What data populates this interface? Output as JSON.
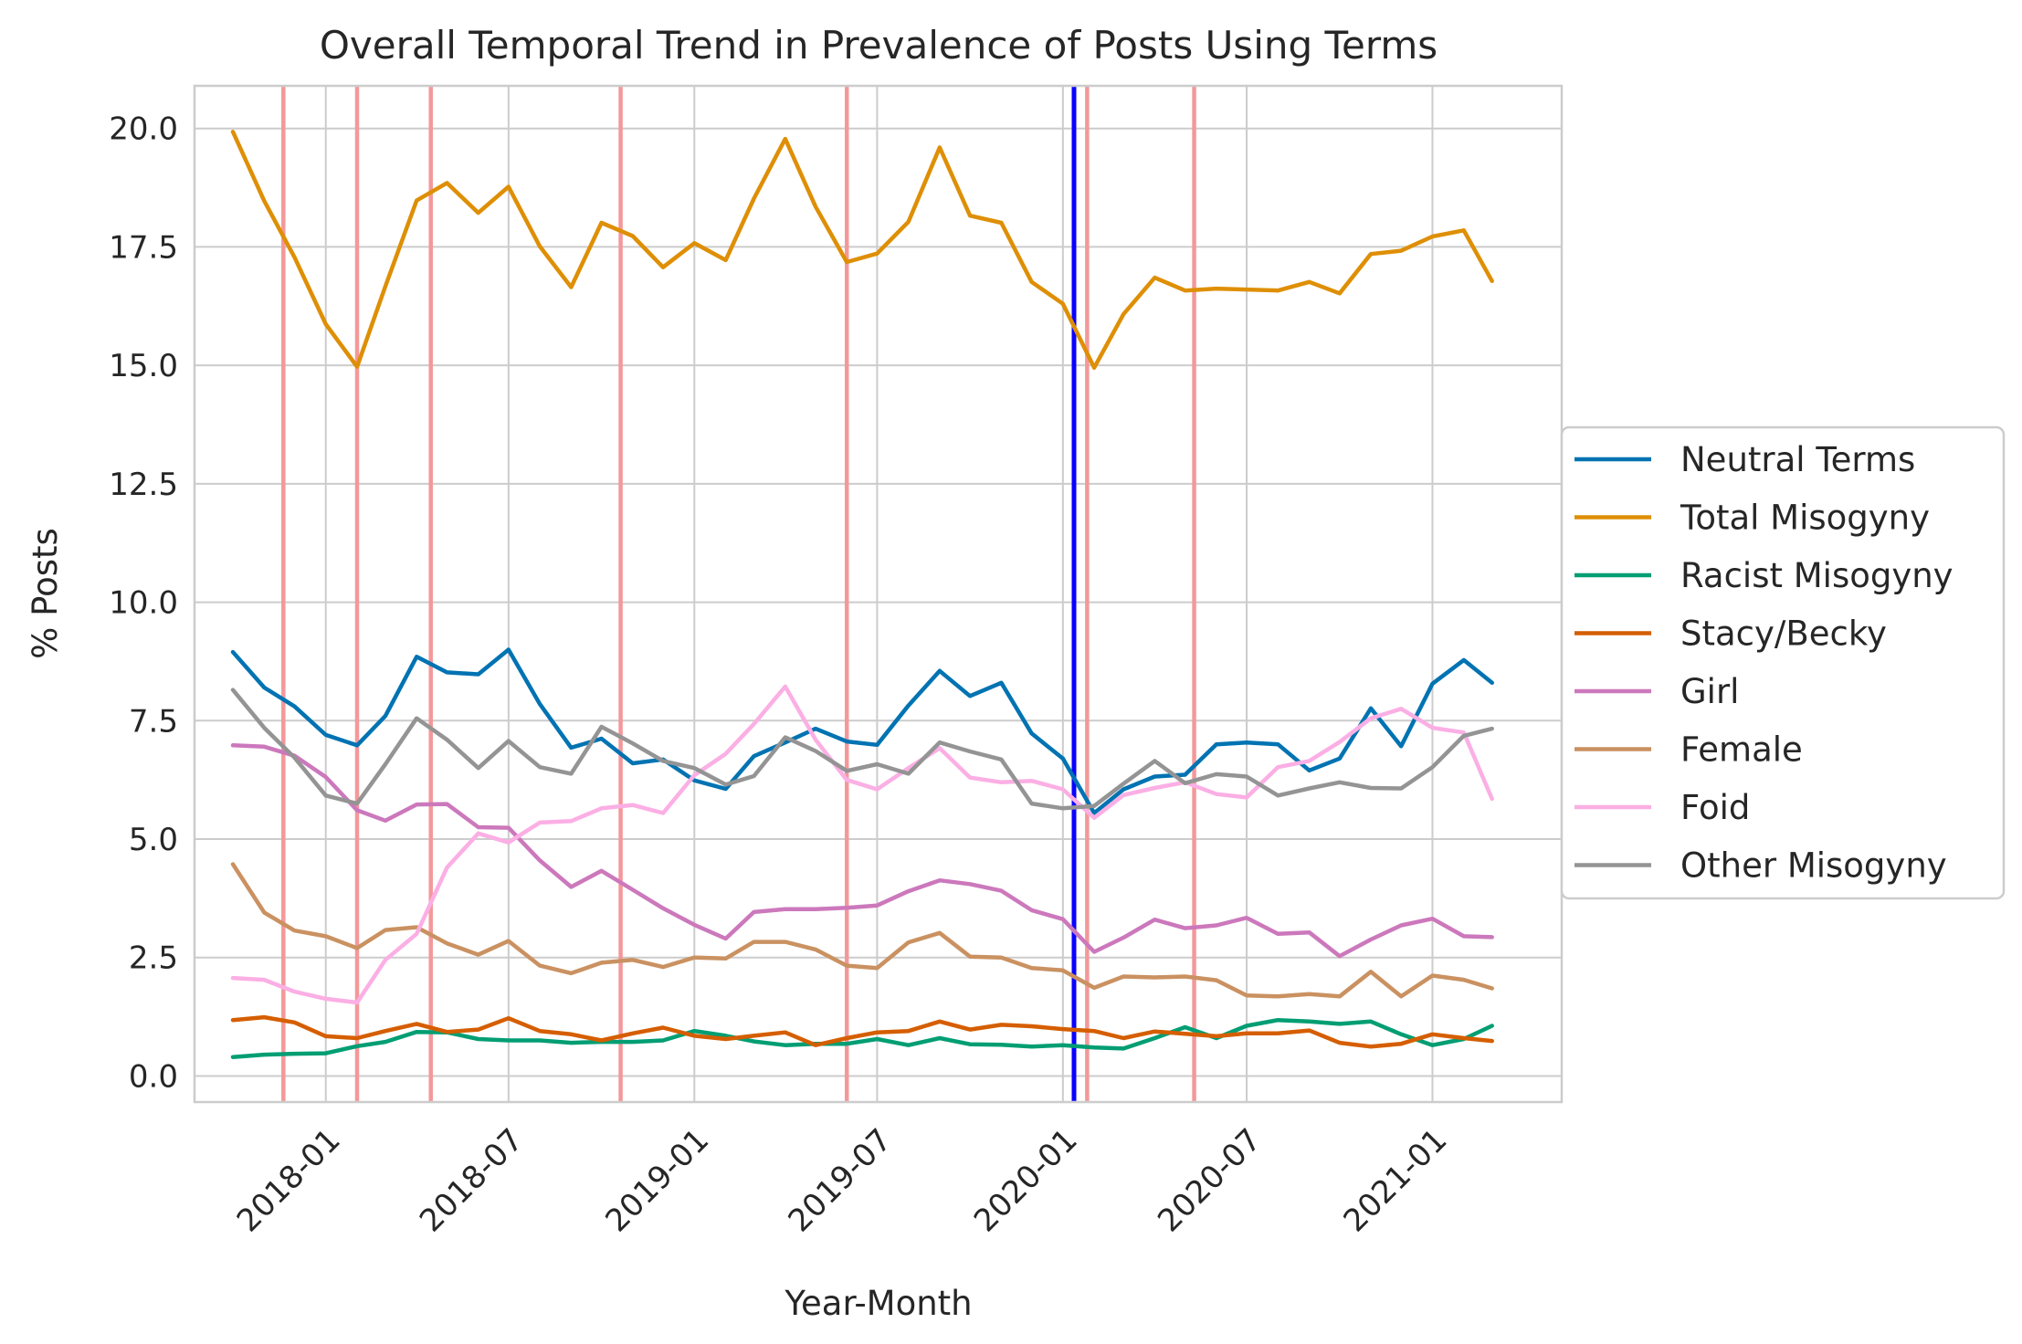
{
  "chart_data": {
    "type": "line",
    "title": "Overall Temporal Trend in Prevalence of Posts Using Terms",
    "xlabel": "Year-Month",
    "ylabel": "% Posts",
    "x_start": "2017-10",
    "x_ticks": [
      "2018-01",
      "2018-07",
      "2019-01",
      "2019-07",
      "2020-01",
      "2020-07",
      "2021-01"
    ],
    "xlim": [
      "2017-08-24",
      "2021-05-09"
    ],
    "y_ticks": [
      "0.0",
      "2.5",
      "5.0",
      "7.5",
      "10.0",
      "12.5",
      "15.0",
      "17.5",
      "20.0"
    ],
    "ylim": [
      -0.55,
      20.9
    ],
    "grid": true,
    "legend_position": "right-outside",
    "red_lines": [
      "2017-11-20",
      "2018-02-01",
      "2018-04-15",
      "2018-10-20",
      "2019-06-01",
      "2020-01-25",
      "2020-05-10"
    ],
    "blue_line": "2020-01-12",
    "colors": {
      "red_line": "#f4989a",
      "blue_line": "#0a00ff",
      "grid": "#cccccc",
      "frame": "#cccccc"
    },
    "series": [
      {
        "name": "Neutral Terms",
        "color": "#0173b2",
        "values": [
          8.95,
          8.2,
          7.8,
          7.2,
          6.98,
          7.6,
          8.85,
          8.52,
          8.48,
          9.0,
          7.85,
          6.93,
          7.12,
          6.6,
          6.68,
          6.24,
          6.06,
          6.75,
          7.04,
          7.33,
          7.06,
          6.99,
          7.82,
          8.55,
          8.02,
          8.3,
          7.23,
          6.7,
          5.55,
          6.05,
          6.32,
          6.36,
          7.0,
          7.04,
          7.0,
          6.45,
          6.7,
          7.76,
          6.96,
          8.28,
          8.78,
          8.3
        ]
      },
      {
        "name": "Total Misogyny",
        "color": "#de8f05",
        "values": [
          19.93,
          18.47,
          17.28,
          15.87,
          14.97,
          16.67,
          18.48,
          18.85,
          18.22,
          18.77,
          17.51,
          16.65,
          18.01,
          17.73,
          17.07,
          17.58,
          17.22,
          18.52,
          19.78,
          18.35,
          17.18,
          17.36,
          18.03,
          19.6,
          18.16,
          18.01,
          16.76,
          16.3,
          14.95,
          16.08,
          16.85,
          16.58,
          16.62,
          16.6,
          16.58,
          16.76,
          16.52,
          17.35,
          17.42,
          17.72,
          17.85,
          16.78
        ]
      },
      {
        "name": "Racist Misogyny",
        "color": "#029e73",
        "values": [
          0.4,
          0.45,
          0.47,
          0.48,
          0.63,
          0.72,
          0.93,
          0.92,
          0.78,
          0.75,
          0.75,
          0.7,
          0.72,
          0.72,
          0.75,
          0.95,
          0.85,
          0.73,
          0.65,
          0.68,
          0.68,
          0.78,
          0.65,
          0.8,
          0.67,
          0.66,
          0.62,
          0.65,
          0.6,
          0.58,
          0.8,
          1.03,
          0.8,
          1.06,
          1.18,
          1.15,
          1.1,
          1.15,
          0.88,
          0.65,
          0.78,
          1.06
        ]
      },
      {
        "name": "Stacy/Becky",
        "color": "#d55e00",
        "values": [
          1.18,
          1.24,
          1.13,
          0.84,
          0.8,
          0.95,
          1.1,
          0.93,
          0.98,
          1.22,
          0.95,
          0.88,
          0.75,
          0.9,
          1.02,
          0.85,
          0.78,
          0.85,
          0.92,
          0.65,
          0.8,
          0.92,
          0.95,
          1.15,
          0.98,
          1.08,
          1.05,
          0.99,
          0.95,
          0.8,
          0.94,
          0.89,
          0.84,
          0.9,
          0.9,
          0.96,
          0.7,
          0.62,
          0.68,
          0.88,
          0.8,
          0.74
        ]
      },
      {
        "name": "Girl",
        "color": "#cc78bc",
        "values": [
          6.98,
          6.95,
          6.76,
          6.31,
          5.61,
          5.39,
          5.73,
          5.74,
          5.25,
          5.24,
          4.55,
          3.99,
          4.33,
          3.93,
          3.54,
          3.19,
          2.9,
          3.46,
          3.52,
          3.52,
          3.55,
          3.6,
          3.9,
          4.13,
          4.05,
          3.91,
          3.5,
          3.31,
          2.62,
          2.92,
          3.3,
          3.12,
          3.18,
          3.34,
          3.0,
          3.03,
          2.53,
          2.88,
          3.18,
          3.32,
          2.95,
          2.93
        ]
      },
      {
        "name": "Female",
        "color": "#ca9161",
        "values": [
          4.47,
          3.45,
          3.07,
          2.95,
          2.7,
          3.08,
          3.14,
          2.8,
          2.56,
          2.85,
          2.33,
          2.17,
          2.39,
          2.45,
          2.3,
          2.5,
          2.48,
          2.83,
          2.83,
          2.67,
          2.33,
          2.28,
          2.82,
          3.02,
          2.52,
          2.5,
          2.28,
          2.23,
          1.86,
          2.1,
          2.08,
          2.1,
          2.02,
          1.7,
          1.68,
          1.73,
          1.68,
          2.2,
          1.68,
          2.12,
          2.03,
          1.85
        ]
      },
      {
        "name": "Foid",
        "color": "#fbafe4",
        "values": [
          2.07,
          2.03,
          1.78,
          1.63,
          1.55,
          2.45,
          3.0,
          4.4,
          5.12,
          4.93,
          5.35,
          5.38,
          5.65,
          5.72,
          5.55,
          6.35,
          6.8,
          7.43,
          8.22,
          7.1,
          6.25,
          6.05,
          6.5,
          6.92,
          6.3,
          6.2,
          6.23,
          6.05,
          5.45,
          5.93,
          6.08,
          6.2,
          5.95,
          5.88,
          6.52,
          6.65,
          7.05,
          7.55,
          7.75,
          7.35,
          7.25,
          5.85
        ]
      },
      {
        "name": "Other Misogyny",
        "color": "#949494",
        "values": [
          8.15,
          7.35,
          6.72,
          5.92,
          5.75,
          6.58,
          7.55,
          7.1,
          6.5,
          7.07,
          6.52,
          6.38,
          7.37,
          7.02,
          6.65,
          6.5,
          6.15,
          6.33,
          7.15,
          6.86,
          6.44,
          6.58,
          6.38,
          7.04,
          6.85,
          6.68,
          5.75,
          5.65,
          5.7,
          6.17,
          6.65,
          6.18,
          6.37,
          6.32,
          5.92,
          6.07,
          6.2,
          6.08,
          6.07,
          6.52,
          7.18,
          7.33
        ]
      }
    ]
  }
}
